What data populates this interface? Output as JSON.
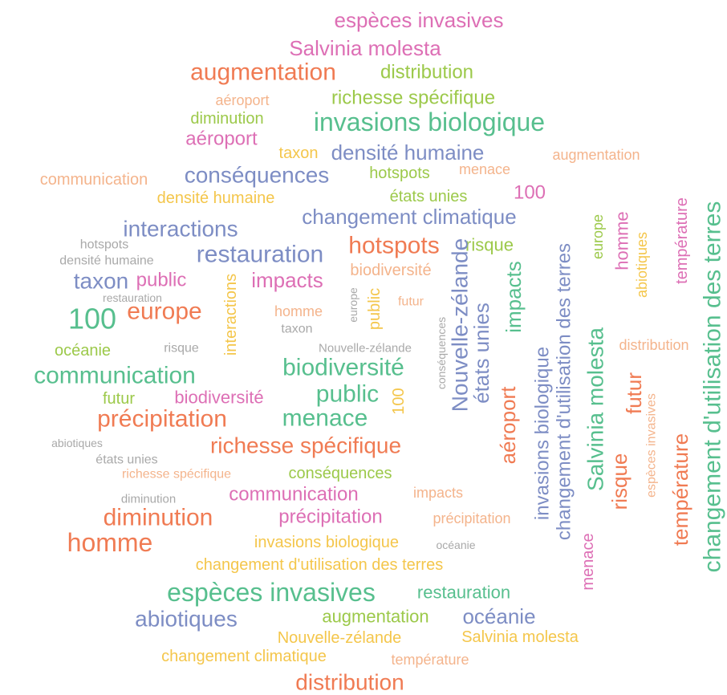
{
  "words": [
    {
      "text": "espèces invasives",
      "color": "#dd6fb5"
    },
    {
      "text": "Salvinia molesta",
      "color": "#dd6fb5"
    },
    {
      "text": "augmentation",
      "color": "#f07b53"
    },
    {
      "text": "distribution",
      "color": "#9cc94a"
    },
    {
      "text": "aéroport",
      "color": "#f4b48c"
    },
    {
      "text": "richesse spécifique",
      "color": "#9cc94a"
    },
    {
      "text": "diminution",
      "color": "#9cc94a"
    },
    {
      "text": "invasions biologique",
      "color": "#57bf8e"
    },
    {
      "text": "aéroport",
      "color": "#dd6fb5"
    },
    {
      "text": "taxon",
      "color": "#f4c64b"
    },
    {
      "text": "densité humaine",
      "color": "#7d8dc4"
    },
    {
      "text": "augmentation",
      "color": "#f4b48c"
    },
    {
      "text": "menace",
      "color": "#f4b48c"
    },
    {
      "text": "communication",
      "color": "#f4b48c"
    },
    {
      "text": "conséquences",
      "color": "#7d8dc4"
    },
    {
      "text": "hotspots",
      "color": "#9cc94a"
    },
    {
      "text": "densité humaine",
      "color": "#f4c64b"
    },
    {
      "text": "états unies",
      "color": "#9cc94a"
    },
    {
      "text": "100",
      "color": "#dd6fb5"
    },
    {
      "text": "changement climatique",
      "color": "#7d8dc4"
    },
    {
      "text": "interactions",
      "color": "#7d8dc4"
    },
    {
      "text": "hotspots",
      "color": "#f07b53"
    },
    {
      "text": "risque",
      "color": "#9cc94a"
    },
    {
      "text": "hotspots",
      "color": "#a9a9a9"
    },
    {
      "text": "densité humaine",
      "color": "#a9a9a9"
    },
    {
      "text": "restauration",
      "color": "#7d8dc4"
    },
    {
      "text": "taxon",
      "color": "#7d8dc4"
    },
    {
      "text": "public",
      "color": "#dd6fb5"
    },
    {
      "text": "impacts",
      "color": "#dd6fb5"
    },
    {
      "text": "biodiversité",
      "color": "#f4b48c"
    },
    {
      "text": "interactions",
      "color": "#f4c64b"
    },
    {
      "text": "restauration",
      "color": "#a9a9a9"
    },
    {
      "text": "homme",
      "color": "#f4b48c"
    },
    {
      "text": "europe",
      "color": "#a9a9a9"
    },
    {
      "text": "public",
      "color": "#f4c64b"
    },
    {
      "text": "futur",
      "color": "#f4b48c"
    },
    {
      "text": "100",
      "color": "#57bf8e"
    },
    {
      "text": "europe",
      "color": "#f07b53"
    },
    {
      "text": "taxon",
      "color": "#a9a9a9"
    },
    {
      "text": "conséquences",
      "color": "#a9a9a9"
    },
    {
      "text": "océanie",
      "color": "#9cc94a"
    },
    {
      "text": "risque",
      "color": "#a9a9a9"
    },
    {
      "text": "Nouvelle-zélande",
      "color": "#a9a9a9"
    },
    {
      "text": "communication",
      "color": "#57bf8e"
    },
    {
      "text": "biodiversité",
      "color": "#57bf8e"
    },
    {
      "text": "futur",
      "color": "#9cc94a"
    },
    {
      "text": "biodiversité",
      "color": "#dd6fb5"
    },
    {
      "text": "public",
      "color": "#57bf8e"
    },
    {
      "text": "100",
      "color": "#f4c64b"
    },
    {
      "text": "précipitation",
      "color": "#f07b53"
    },
    {
      "text": "menace",
      "color": "#57bf8e"
    },
    {
      "text": "abiotiques",
      "color": "#a9a9a9"
    },
    {
      "text": "richesse spécifique",
      "color": "#f07b53"
    },
    {
      "text": "états unies",
      "color": "#a9a9a9"
    },
    {
      "text": "richesse spécifique",
      "color": "#f4b48c"
    },
    {
      "text": "conséquences",
      "color": "#9cc94a"
    },
    {
      "text": "diminution",
      "color": "#a9a9a9"
    },
    {
      "text": "communication",
      "color": "#dd6fb5"
    },
    {
      "text": "impacts",
      "color": "#f4b48c"
    },
    {
      "text": "diminution",
      "color": "#f07b53"
    },
    {
      "text": "précipitation",
      "color": "#dd6fb5"
    },
    {
      "text": "précipitation",
      "color": "#f4b48c"
    },
    {
      "text": "homme",
      "color": "#f07b53"
    },
    {
      "text": "invasions biologique",
      "color": "#f4c64b"
    },
    {
      "text": "océanie",
      "color": "#a9a9a9"
    },
    {
      "text": "changement d'utilisation des terres",
      "color": "#f4c64b"
    },
    {
      "text": "espèces invasives",
      "color": "#57bf8e"
    },
    {
      "text": "restauration",
      "color": "#57bf8e"
    },
    {
      "text": "abiotiques",
      "color": "#7d8dc4"
    },
    {
      "text": "augmentation",
      "color": "#9cc94a"
    },
    {
      "text": "océanie",
      "color": "#7d8dc4"
    },
    {
      "text": "Nouvelle-zélande",
      "color": "#f4c64b"
    },
    {
      "text": "Salvinia molesta",
      "color": "#f4c64b"
    },
    {
      "text": "changement climatique",
      "color": "#f4c64b"
    },
    {
      "text": "température",
      "color": "#f4b48c"
    },
    {
      "text": "distribution",
      "color": "#f07b53"
    },
    {
      "text": "Nouvelle-zélande",
      "color": "#7d8dc4"
    },
    {
      "text": "états unies",
      "color": "#7d8dc4"
    },
    {
      "text": "aéroport",
      "color": "#f07b53"
    },
    {
      "text": "impacts",
      "color": "#57bf8e"
    },
    {
      "text": "invasions biologique",
      "color": "#7d8dc4"
    },
    {
      "text": "changement d'utilisation des terres",
      "color": "#7d8dc4"
    },
    {
      "text": "menace",
      "color": "#dd6fb5"
    },
    {
      "text": "europe",
      "color": "#9cc94a"
    },
    {
      "text": "Salvinia molesta",
      "color": "#57bf8e"
    },
    {
      "text": "homme",
      "color": "#dd6fb5"
    },
    {
      "text": "abiotiques",
      "color": "#f4c64b"
    },
    {
      "text": "risque",
      "color": "#f07b53"
    },
    {
      "text": "futur",
      "color": "#f07b53"
    },
    {
      "text": "distribution",
      "color": "#f4b48c"
    },
    {
      "text": "espèces invasives",
      "color": "#f4b48c"
    },
    {
      "text": "température",
      "color": "#dd6fb5"
    },
    {
      "text": "température",
      "color": "#f07b53"
    },
    {
      "text": "changement d'utilisation des terres",
      "color": "#57bf8e"
    }
  ]
}
